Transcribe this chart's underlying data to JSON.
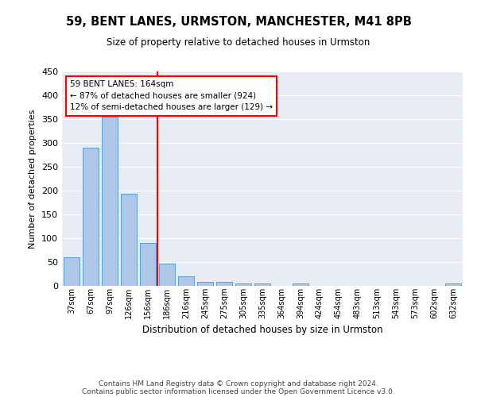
{
  "title": "59, BENT LANES, URMSTON, MANCHESTER, M41 8PB",
  "subtitle": "Size of property relative to detached houses in Urmston",
  "xlabel": "Distribution of detached houses by size in Urmston",
  "ylabel": "Number of detached properties",
  "categories": [
    "37sqm",
    "67sqm",
    "97sqm",
    "126sqm",
    "156sqm",
    "186sqm",
    "216sqm",
    "245sqm",
    "275sqm",
    "305sqm",
    "335sqm",
    "364sqm",
    "394sqm",
    "424sqm",
    "454sqm",
    "483sqm",
    "513sqm",
    "543sqm",
    "573sqm",
    "602sqm",
    "632sqm"
  ],
  "values": [
    60,
    290,
    355,
    193,
    90,
    47,
    20,
    9,
    8,
    5,
    5,
    0,
    5,
    0,
    0,
    0,
    0,
    0,
    0,
    0,
    5
  ],
  "bar_color": "#aec6e8",
  "bar_edge_color": "#5a9fd4",
  "annotation_line1": "59 BENT LANES: 164sqm",
  "annotation_line2": "← 87% of detached houses are smaller (924)",
  "annotation_line3": "12% of semi-detached houses are larger (129) →",
  "vline_position": 4.5,
  "vline_color": "red",
  "annotation_box_color": "white",
  "annotation_box_edge_color": "red",
  "ylim": [
    0,
    450
  ],
  "yticks": [
    0,
    50,
    100,
    150,
    200,
    250,
    300,
    350,
    400,
    450
  ],
  "footer_line1": "Contains HM Land Registry data © Crown copyright and database right 2024.",
  "footer_line2": "Contains public sector information licensed under the Open Government Licence v3.0.",
  "bg_color": "#e8edf5",
  "grid_color": "white",
  "spine_color": "#cccccc"
}
